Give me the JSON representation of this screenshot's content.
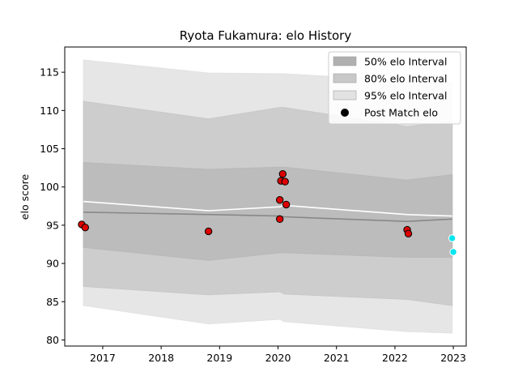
{
  "chart_data": {
    "type": "line",
    "title": "Ryota Fukamura: elo History",
    "xlabel": "",
    "ylabel": "elo score",
    "xlim": [
      2016.35,
      2023.22
    ],
    "ylim": [
      79.2,
      118.3
    ],
    "xticks": [
      2017,
      2018,
      2019,
      2020,
      2021,
      2022,
      2023
    ],
    "yticks": [
      80,
      85,
      90,
      95,
      100,
      105,
      110,
      115
    ],
    "grid": false,
    "legend_position": "top-right",
    "legend": [
      {
        "label": "50% elo Interval",
        "kind": "band",
        "color": "#b0b0b0"
      },
      {
        "label": "80% elo Interval",
        "kind": "band",
        "color": "#c8c8c8"
      },
      {
        "label": "95% elo Interval",
        "kind": "band",
        "color": "#e2e2e2"
      },
      {
        "label": "Post Match elo",
        "kind": "marker",
        "color": "#000000"
      }
    ],
    "timeline_x": [
      2016.67,
      2018.81,
      2020.03,
      2020.1,
      2022.2,
      2022.98
    ],
    "bands": [
      {
        "name": "95% elo Interval",
        "color": "#e2e2e2",
        "upper": [
          116.6,
          114.9,
          114.8,
          114.8,
          113.9,
          113.6
        ],
        "lower": [
          84.5,
          82.1,
          82.7,
          82.4,
          81.1,
          80.9
        ]
      },
      {
        "name": "80% elo Interval",
        "color": "#c8c8c8",
        "upper": [
          111.2,
          108.9,
          110.4,
          110.4,
          107.9,
          108.5
        ],
        "lower": [
          87.0,
          85.9,
          86.3,
          86.0,
          85.3,
          84.5
        ]
      },
      {
        "name": "50% elo Interval",
        "color": "#b8b8b8",
        "upper": [
          103.2,
          102.3,
          102.6,
          102.6,
          100.9,
          101.6
        ],
        "lower": [
          92.1,
          90.4,
          91.4,
          91.4,
          90.8,
          90.8
        ]
      }
    ],
    "series": [
      {
        "kind": "line",
        "color": "#888888",
        "values": [
          96.7,
          96.4,
          96.2,
          96.1,
          95.5,
          95.8
        ]
      },
      {
        "kind": "line",
        "color": "#ffffff",
        "values": [
          98.1,
          96.9,
          97.4,
          97.6,
          96.4,
          96.2
        ]
      }
    ],
    "post_match_points": [
      {
        "x": 2016.64,
        "y": 95.1
      },
      {
        "x": 2016.7,
        "y": 94.7
      },
      {
        "x": 2018.81,
        "y": 94.2
      },
      {
        "x": 2020.03,
        "y": 98.3
      },
      {
        "x": 2020.05,
        "y": 100.8
      },
      {
        "x": 2020.08,
        "y": 101.7
      },
      {
        "x": 2020.12,
        "y": 100.7
      },
      {
        "x": 2020.14,
        "y": 97.7
      },
      {
        "x": 2020.03,
        "y": 95.8
      },
      {
        "x": 2022.21,
        "y": 94.4
      },
      {
        "x": 2022.23,
        "y": 93.9
      }
    ],
    "prediction_points": [
      {
        "x": 2022.98,
        "y": 93.3
      },
      {
        "x": 2023.0,
        "y": 91.5
      }
    ],
    "colors": {
      "post_match": "#dd0000",
      "prediction": "#00e5ee",
      "axis": "#000000"
    }
  }
}
